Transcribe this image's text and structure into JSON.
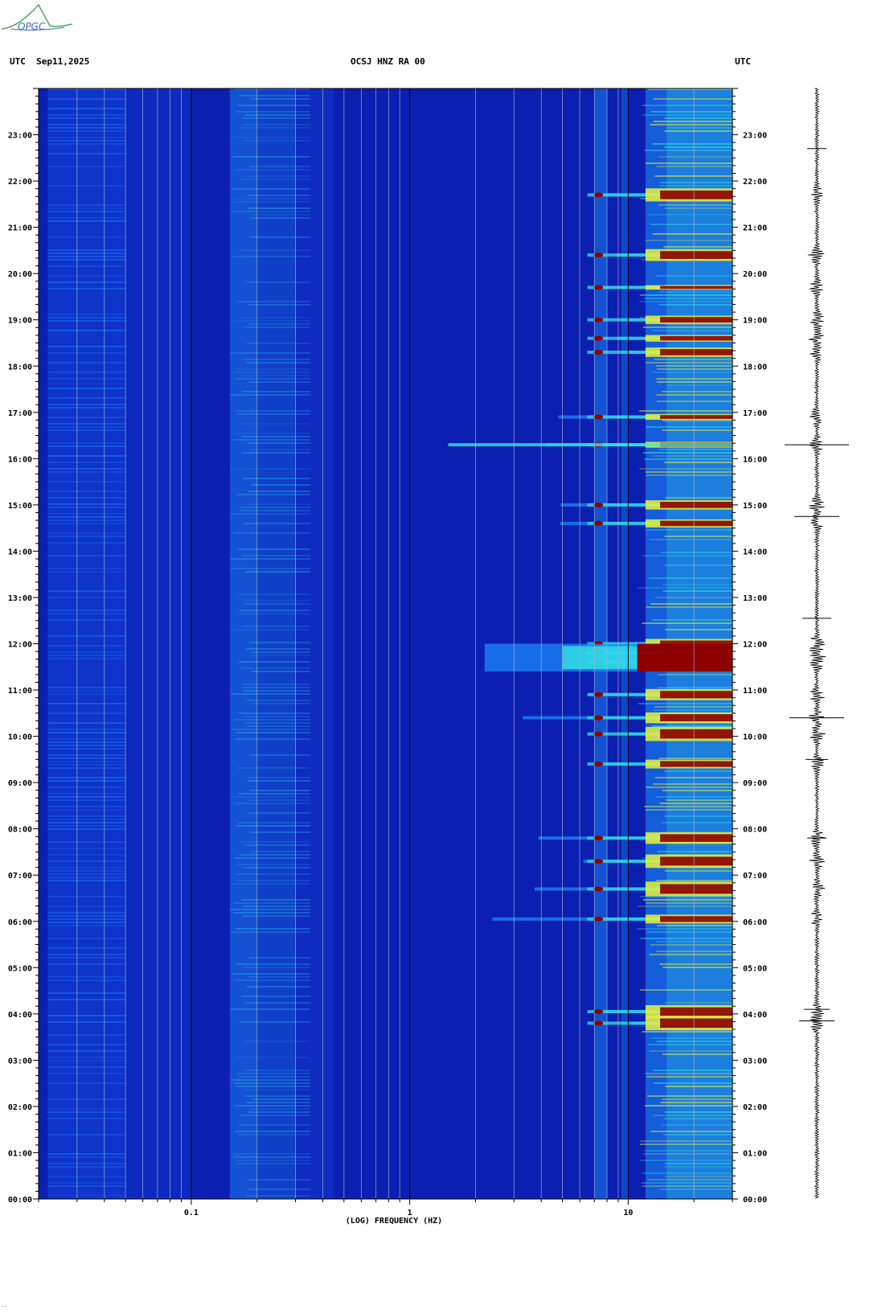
{
  "logo": {
    "text": "OPGC",
    "color": "#3a6fb0",
    "mountain_color": "#4fa85a"
  },
  "header": {
    "left": "UTC  Sep11,2025",
    "center": "OCSJ HNZ RA 00",
    "right": "UTC"
  },
  "footer_mark": "..",
  "chart_data": {
    "type": "heatmap",
    "xlabel": "(LOG) FREQUENCY (HZ)",
    "x_scale": "log",
    "xlim": [
      0.02,
      30
    ],
    "x_ticks": [
      {
        "value": 0.1,
        "label": "0.1"
      },
      {
        "value": 1,
        "label": "1"
      },
      {
        "value": 10,
        "label": "10"
      }
    ],
    "ylim_hours": [
      0,
      24
    ],
    "y_ticks": [
      "00:00",
      "01:00",
      "02:00",
      "03:00",
      "04:00",
      "05:00",
      "06:00",
      "07:00",
      "08:00",
      "09:00",
      "10:00",
      "11:00",
      "12:00",
      "13:00",
      "14:00",
      "15:00",
      "16:00",
      "17:00",
      "18:00",
      "19:00",
      "20:00",
      "21:00",
      "22:00",
      "23:00"
    ],
    "colormap": [
      "#0a1ea0",
      "#1446e0",
      "#1e90ff",
      "#32e6e6",
      "#e6f03c",
      "#ff7800",
      "#8c0000"
    ],
    "colors": {
      "background": "#0b1fb0",
      "grid": "#aab4c8",
      "major_grid": "#000000"
    },
    "events_hours": [
      3.8,
      4.05,
      6.05,
      6.7,
      7.3,
      7.8,
      9.4,
      10.05,
      10.4,
      10.9,
      11.6,
      11.8,
      12.0,
      14.6,
      15.0,
      16.3,
      16.9,
      18.3,
      18.6,
      19.0,
      19.7,
      20.4,
      21.7
    ]
  }
}
